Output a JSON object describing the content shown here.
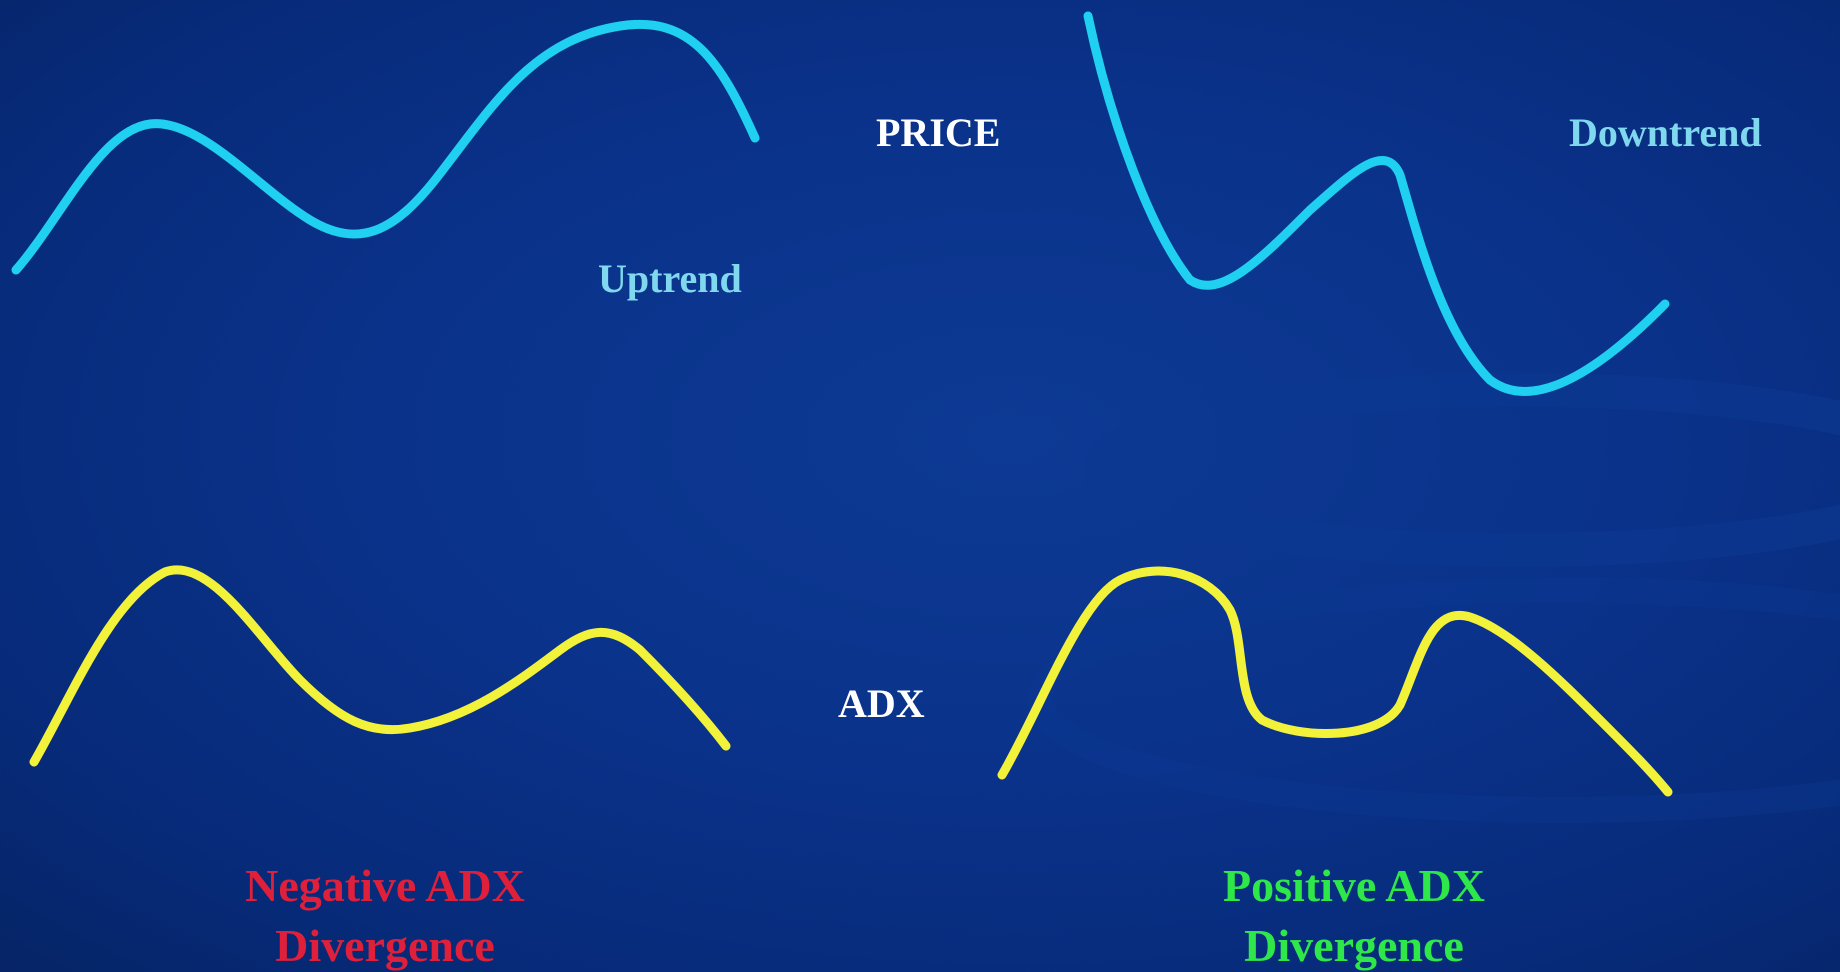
{
  "labels": {
    "price": "PRICE",
    "adx": "ADX",
    "uptrend": "Uptrend",
    "downtrend": "Downtrend"
  },
  "captions": {
    "negative": {
      "line1": "Negative ADX",
      "line2": "Divergence"
    },
    "positive": {
      "line1": "Positive ADX",
      "line2": "Divergence"
    }
  },
  "colors": {
    "background": "#0a328a",
    "price_curve": "#1fd0f0",
    "adx_curve": "#f2f23a",
    "label_white": "#ffffff",
    "label_cyan": "#7fd8ee",
    "negative": "#e0203a",
    "positive": "#2ee84a"
  }
}
